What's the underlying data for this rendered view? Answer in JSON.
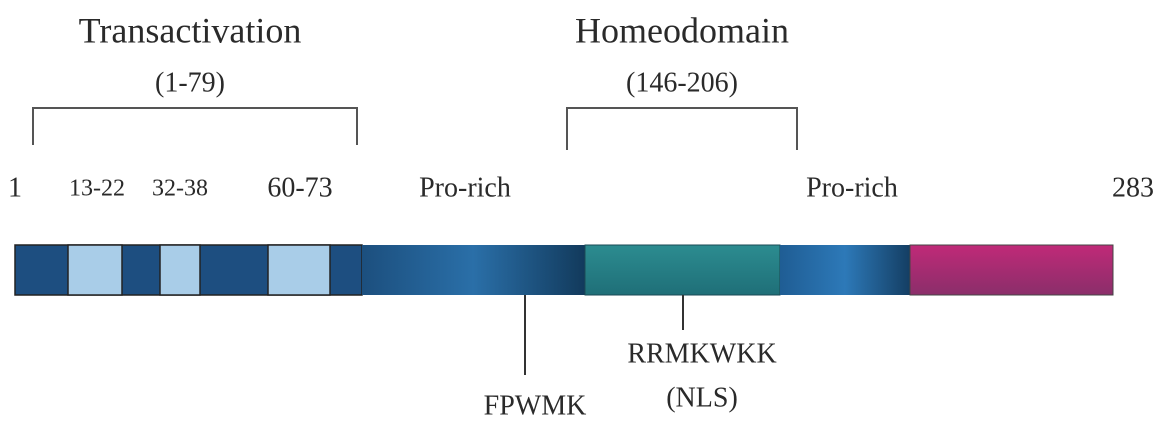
{
  "domains": [
    {
      "title": "Transactivation",
      "range": "(1-79)"
    },
    {
      "title": "Homeodomain",
      "range": "(146-206)"
    }
  ],
  "position_labels": {
    "start": "1",
    "end": "283"
  },
  "motif_labels": [
    "13-22",
    "32-38",
    "60-73"
  ],
  "region_labels": [
    "Pro-rich",
    "Pro-rich"
  ],
  "annotations": [
    {
      "label": "FPWMK"
    },
    {
      "label": "RRMKWKK",
      "note": "(NLS)"
    }
  ]
}
